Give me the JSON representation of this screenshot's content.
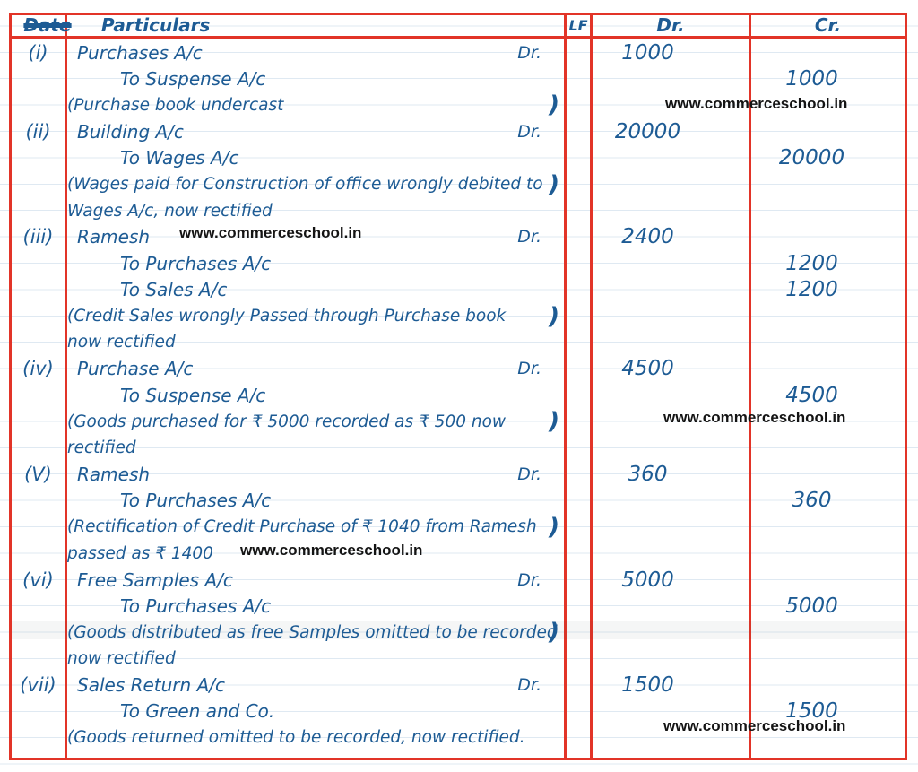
{
  "table": {
    "headers": {
      "date": "Date",
      "particulars": "Particulars",
      "lf": "LF",
      "dr": "Dr.",
      "cr": "Cr."
    },
    "entries": [
      {
        "number": "(i)",
        "lines": [
          {
            "kind": "debit",
            "text": "Purchases A/c",
            "suffix": "Dr.",
            "dr": "1000"
          },
          {
            "kind": "credit",
            "text": "To Suspense A/c",
            "cr": "1000"
          },
          {
            "kind": "narration",
            "text": "(Purchase book undercast",
            "close": ")"
          }
        ]
      },
      {
        "number": "(ii)",
        "lines": [
          {
            "kind": "debit",
            "text": "Building A/c",
            "suffix": "Dr.",
            "dr": "20000"
          },
          {
            "kind": "credit",
            "text": "To Wages A/c",
            "cr": "20000"
          },
          {
            "kind": "narration",
            "text": "(Wages paid for Construction of office wrongly debited to",
            "close": ")"
          },
          {
            "kind": "narration",
            "text": "Wages A/c, now rectified"
          }
        ]
      },
      {
        "number": "(iii)",
        "lines": [
          {
            "kind": "debit",
            "text": "Ramesh",
            "suffix": "Dr.",
            "dr": "2400"
          },
          {
            "kind": "credit",
            "text": "To Purchases A/c",
            "cr": "1200"
          },
          {
            "kind": "credit",
            "text": "To Sales A/c",
            "cr": "1200"
          },
          {
            "kind": "narration",
            "text": "(Credit Sales wrongly Passed through Purchase book",
            "close": ")"
          },
          {
            "kind": "narration",
            "text": "now rectified"
          }
        ]
      },
      {
        "number": "(iv)",
        "lines": [
          {
            "kind": "debit",
            "text": "Purchase A/c",
            "suffix": "Dr.",
            "dr": "4500"
          },
          {
            "kind": "credit",
            "text": "To Suspense A/c",
            "cr": "4500"
          },
          {
            "kind": "narration",
            "text": "(Goods purchased for ₹ 5000 recorded as ₹ 500 now",
            "close": ")"
          },
          {
            "kind": "narration",
            "text": "rectified"
          }
        ]
      },
      {
        "number": "(V)",
        "lines": [
          {
            "kind": "debit",
            "text": "Ramesh",
            "suffix": "Dr.",
            "dr": "360"
          },
          {
            "kind": "credit",
            "text": "To Purchases A/c",
            "cr": "360"
          },
          {
            "kind": "narration",
            "text": "(Rectification of Credit Purchase of ₹ 1040 from Ramesh",
            "close": ")"
          },
          {
            "kind": "narration",
            "text": "passed as ₹ 1400"
          }
        ]
      },
      {
        "number": "(vi)",
        "lines": [
          {
            "kind": "debit",
            "text": "Free Samples A/c",
            "suffix": "Dr.",
            "dr": "5000"
          },
          {
            "kind": "credit",
            "text": "To Purchases A/c",
            "cr": "5000"
          },
          {
            "kind": "narration",
            "text": "(Goods distributed as free Samples omitted to be recorded",
            "close": ")"
          },
          {
            "kind": "narration",
            "text": "now rectified"
          }
        ]
      },
      {
        "number": "(vii)",
        "lines": [
          {
            "kind": "debit",
            "text": "Sales Return A/c",
            "suffix": "Dr.",
            "dr": "1500"
          },
          {
            "kind": "credit",
            "text": "To Green and Co.",
            "cr": "1500"
          },
          {
            "kind": "narration",
            "text": "(Goods returned omitted to be recorded, now rectified."
          }
        ]
      }
    ]
  },
  "watermark": {
    "text": "www.commerceschool.in"
  },
  "colors": {
    "ink": "#1d5b94",
    "grid_red": "#e23428",
    "watermark": "#141414",
    "ruled_line": "#dfe9f2"
  }
}
